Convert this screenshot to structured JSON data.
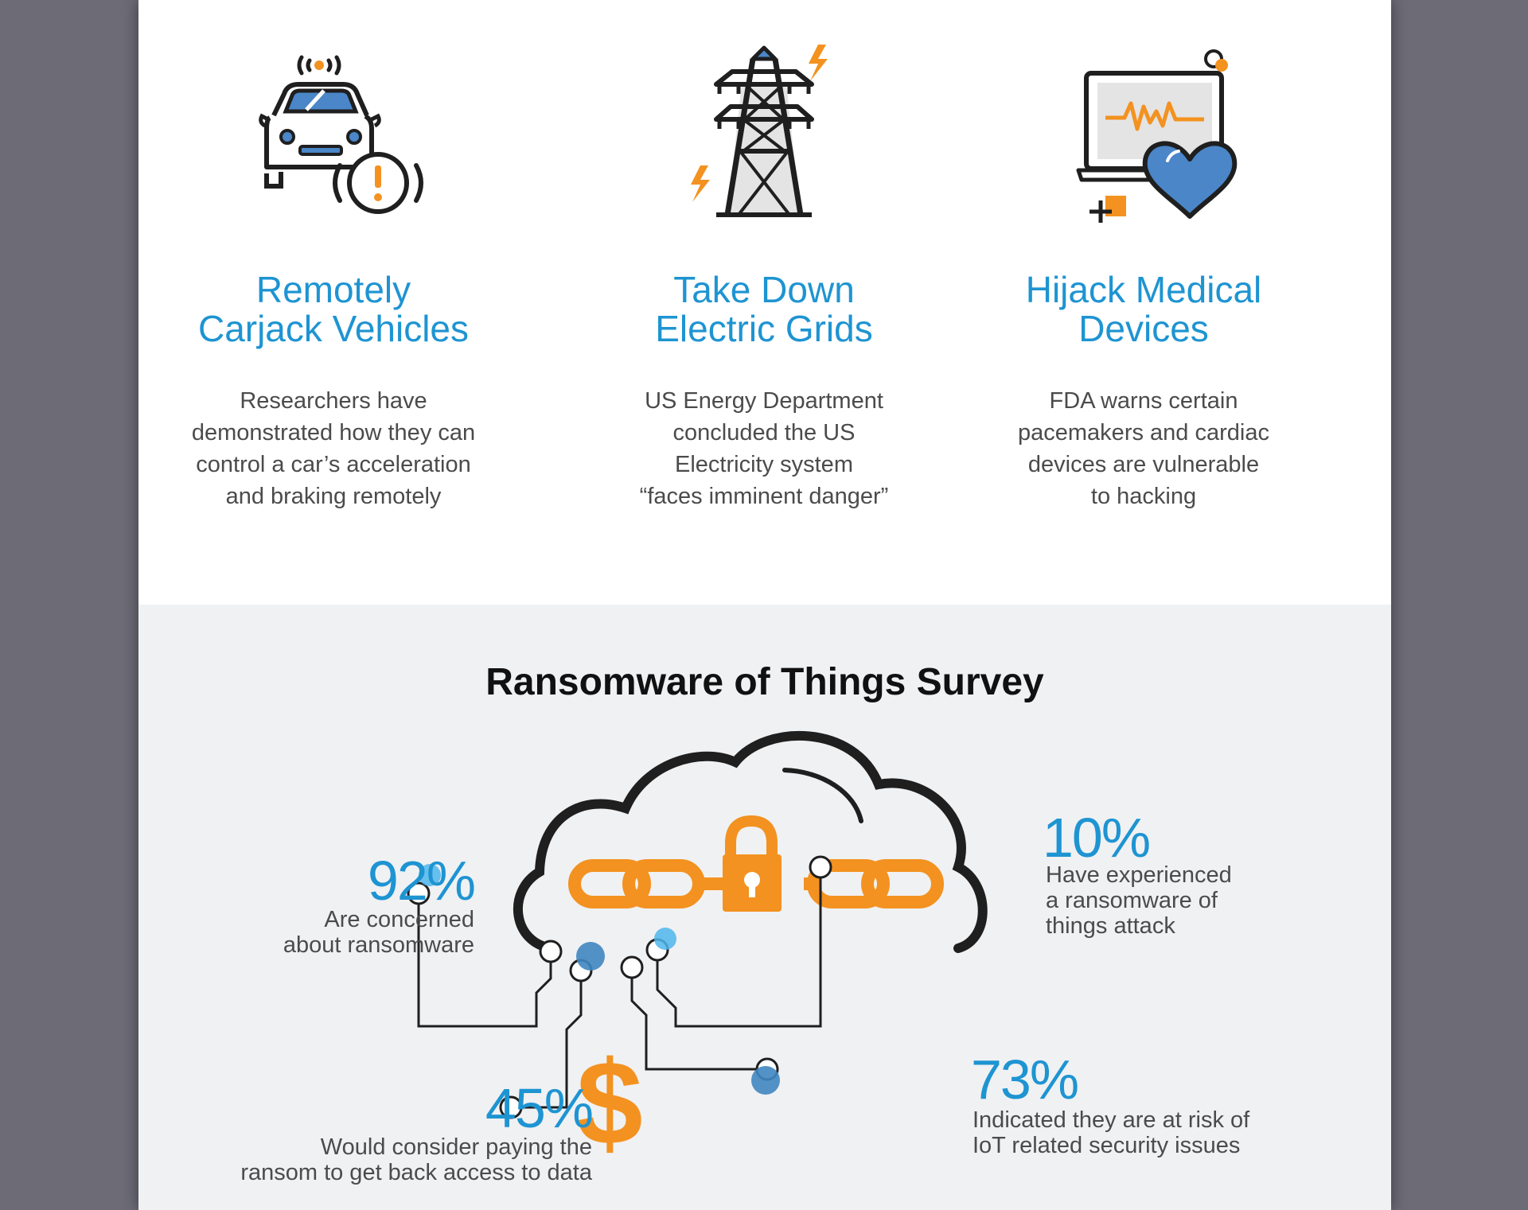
{
  "cards": [
    {
      "title": "Remotely\nCarjack Vehicles",
      "body": "Researchers have\ndemonstrated how they can\ncontrol a car’s acceleration\nand braking remotely",
      "icon": "car-alert-icon"
    },
    {
      "title": "Take Down\nElectric Grids",
      "body": "US Energy Department\nconcluded the US\nElectricity system\n“faces imminent danger”",
      "icon": "power-tower-icon"
    },
    {
      "title": "Hijack Medical\nDevices",
      "body": "FDA warns certain\npacemakers and cardiac\ndevices are vulnerable\nto hacking",
      "icon": "medical-device-heart-icon"
    }
  ],
  "survey": {
    "title": "Ransomware of Things Survey",
    "stats": [
      {
        "value": "92%",
        "text": "Are concerned\nabout ransomware"
      },
      {
        "value": "10%",
        "text": "Have experienced\na ransomware of\nthings attack"
      },
      {
        "value": "45%",
        "text": "Would consider paying the\nransom to get back access to data"
      },
      {
        "value": "73%",
        "text": "Indicated they are at risk of\nIoT related security issues"
      }
    ]
  },
  "colors": {
    "accent_blue": "#1e94d2",
    "accent_orange": "#f39220",
    "icon_blue": "#4a86c8",
    "dark": "#1f1f1f",
    "background_gray": "#6c6b76"
  }
}
